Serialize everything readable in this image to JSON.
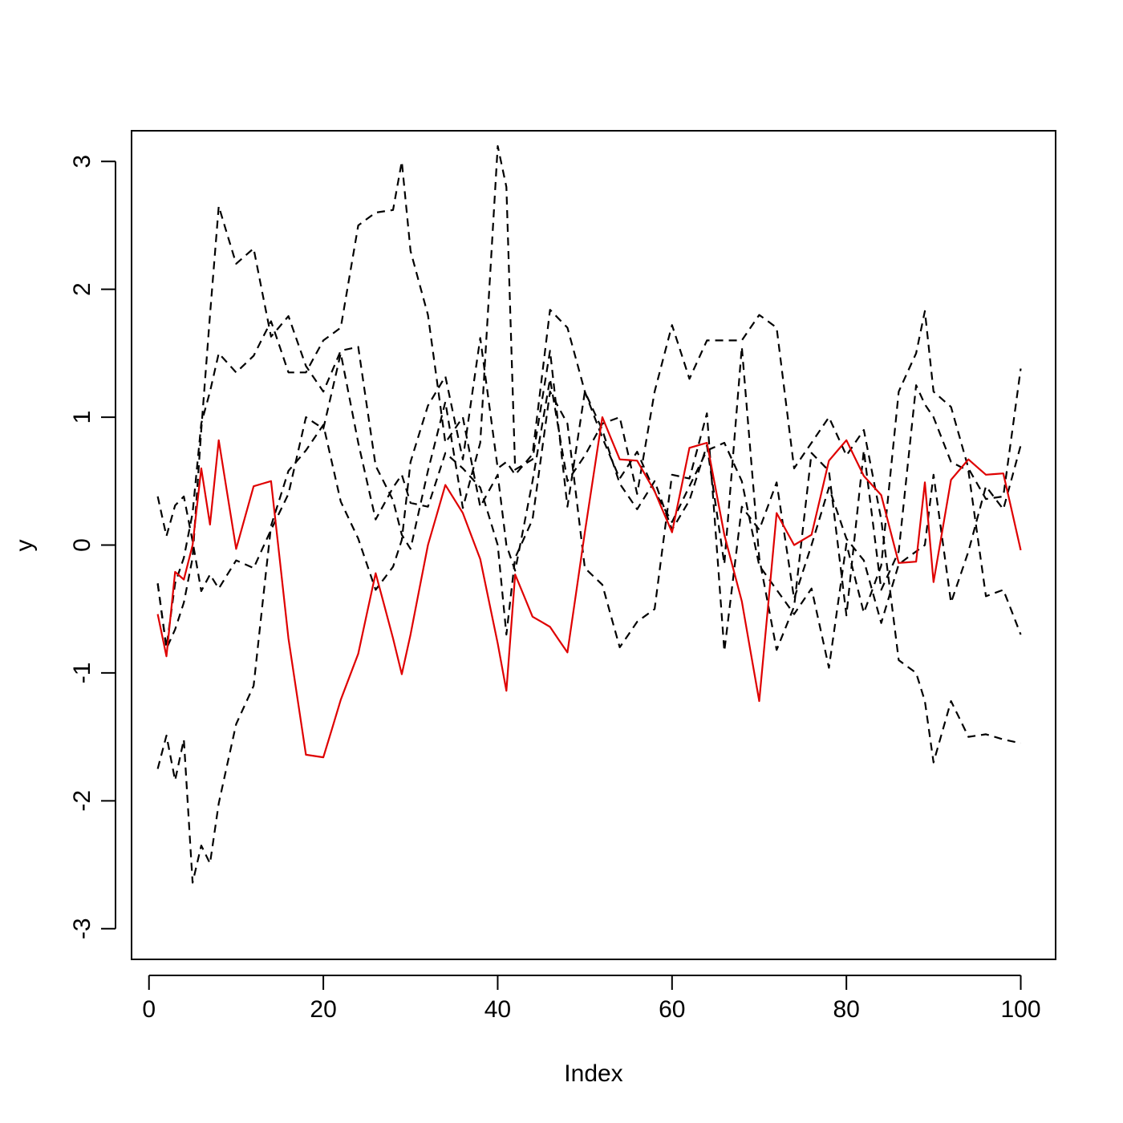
{
  "chart_data": {
    "type": "line",
    "title": "",
    "xlabel": "Index",
    "ylabel": "y",
    "xlim": [
      -2,
      104
    ],
    "ylim": [
      -3.24,
      3.24
    ],
    "x_ticks": [
      0,
      20,
      40,
      60,
      80,
      100
    ],
    "y_ticks": [
      -3,
      -2,
      -1,
      0,
      1,
      2,
      3
    ],
    "grid": false,
    "legend": "none",
    "colors": {
      "dashed": "#000000",
      "highlight": "#DF0000",
      "frame": "#000000",
      "background": "#FFFFFF"
    },
    "anchor_index": [
      1,
      2,
      3,
      4,
      5,
      6,
      7,
      8,
      10,
      12,
      14,
      16,
      18,
      20,
      22,
      24,
      26,
      28,
      29,
      30,
      32,
      34,
      36,
      38,
      40,
      41,
      42,
      44,
      46,
      48,
      50,
      52,
      54,
      56,
      58,
      60,
      62,
      64,
      66,
      68,
      70,
      72,
      74,
      76,
      78,
      80,
      82,
      84,
      86,
      88,
      89,
      90,
      92,
      94,
      96,
      98,
      100
    ],
    "series": [
      {
        "style": "solid",
        "color": "#DF0000",
        "values": [
          -0.54,
          -0.87,
          -0.21,
          -0.27,
          0.0,
          0.6,
          0.16,
          0.82,
          -0.03,
          0.46,
          0.5,
          -0.73,
          -1.64,
          -1.66,
          -1.21,
          -0.85,
          -0.22,
          -0.73,
          -1.01,
          -0.7,
          0.0,
          0.47,
          0.25,
          -0.11,
          -0.77,
          -1.14,
          -0.23,
          -0.56,
          -0.64,
          -0.84,
          0.1,
          1.0,
          0.67,
          0.66,
          0.42,
          0.1,
          0.76,
          0.8,
          0.08,
          -0.44,
          -1.22,
          0.25,
          0.0,
          0.08,
          0.66,
          0.82,
          0.54,
          0.39,
          -0.14,
          -0.13,
          0.49,
          -0.29,
          0.51,
          0.67,
          0.55,
          0.56,
          -0.04
        ]
      },
      {
        "style": "dashed",
        "color": "#000000",
        "values": [
          -1.75,
          -1.49,
          -1.84,
          -1.52,
          -2.64,
          -2.35,
          -2.49,
          -2.02,
          -1.4,
          -1.1,
          0.15,
          0.58,
          0.74,
          0.94,
          0.34,
          0.05,
          -0.35,
          -0.17,
          0.04,
          0.65,
          1.09,
          1.32,
          0.67,
          1.62,
          0.6,
          0.65,
          0.55,
          0.71,
          1.84,
          1.7,
          1.2,
          0.84,
          0.52,
          0.73,
          0.42,
          0.18,
          0.46,
          0.74,
          0.8,
          0.5,
          -0.16,
          -0.35,
          -0.54,
          -0.34,
          -0.96,
          0.01,
          -0.53,
          -0.16,
          1.2,
          1.5,
          1.83,
          1.2,
          1.08,
          0.6,
          0.36,
          0.38,
          1.38
        ]
      },
      {
        "style": "dashed",
        "color": "#000000",
        "values": [
          0.38,
          0.07,
          0.31,
          0.38,
          0.03,
          -0.36,
          -0.23,
          -0.34,
          -0.12,
          -0.18,
          0.12,
          0.4,
          1.0,
          0.91,
          1.5,
          0.8,
          0.2,
          0.45,
          0.55,
          0.33,
          0.3,
          0.72,
          0.6,
          0.45,
          0.0,
          -0.7,
          -0.1,
          0.2,
          1.2,
          0.95,
          -0.18,
          -0.31,
          -0.8,
          -0.6,
          -0.5,
          0.55,
          0.52,
          1.03,
          -0.83,
          0.3,
          0.12,
          0.49,
          -0.42,
          0.0,
          0.45,
          0.05,
          -0.12,
          -0.61,
          -0.15,
          -0.05,
          0.0,
          0.55,
          -0.45,
          -0.05,
          0.46,
          0.28,
          0.78
        ]
      },
      {
        "style": "dashed",
        "color": "#000000",
        "values": [
          -0.3,
          -0.81,
          -0.66,
          -0.45,
          -0.1,
          0.9,
          1.8,
          2.65,
          2.2,
          2.32,
          1.63,
          1.79,
          1.4,
          1.2,
          1.52,
          1.55,
          0.62,
          0.35,
          0.08,
          -0.03,
          0.58,
          1.12,
          0.29,
          0.8,
          3.12,
          2.8,
          0.59,
          0.67,
          1.52,
          0.3,
          1.2,
          0.9,
          0.48,
          0.28,
          0.5,
          0.12,
          0.35,
          0.78,
          -0.15,
          1.55,
          -0.1,
          -0.82,
          -0.48,
          0.72,
          0.58,
          -0.55,
          0.74,
          -0.35,
          -0.05,
          1.25,
          1.1,
          1.0,
          0.65,
          0.58,
          -0.4,
          -0.35,
          -0.7
        ]
      },
      {
        "style": "dashed",
        "color": "#000000",
        "values": [
          -0.3,
          -0.8,
          -0.3,
          -0.1,
          0.25,
          0.95,
          1.2,
          1.5,
          1.35,
          1.48,
          1.75,
          1.35,
          1.35,
          1.6,
          1.7,
          2.5,
          2.6,
          2.62,
          3.0,
          2.3,
          1.8,
          0.8,
          1.0,
          0.3,
          0.55,
          0.0,
          -0.2,
          0.5,
          1.3,
          0.5,
          0.7,
          0.95,
          1.0,
          0.4,
          1.2,
          1.72,
          1.3,
          1.6,
          1.6,
          1.6,
          1.8,
          1.7,
          0.6,
          0.8,
          1.0,
          0.7,
          0.9,
          0.2,
          -0.9,
          -1.0,
          -1.22,
          -1.7,
          -1.22,
          -1.5,
          -1.48,
          -1.52,
          -1.55
        ]
      }
    ]
  }
}
